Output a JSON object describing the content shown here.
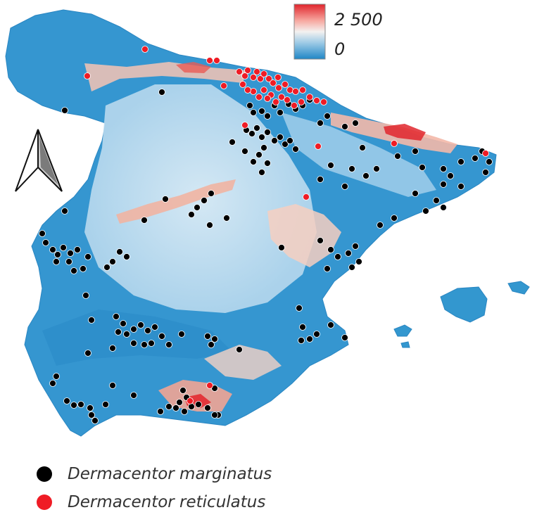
{
  "colors": {
    "sea": "#ffffff",
    "land_low": "#2f8fcb",
    "land_mid": "#c9e3f1",
    "land_high": "#f3c2b3",
    "peak": "#e4242b",
    "marginatus": "#000000",
    "reticulatus": "#ef1c25"
  },
  "elevation_scale": {
    "max_label": "2 500",
    "min_label": "0"
  },
  "north_arrow": {
    "icon": "north-arrow-icon"
  },
  "legend": {
    "items": [
      {
        "key": "marginatus",
        "label": "Dermacentor marginatus"
      },
      {
        "key": "reticulatus",
        "label": "Dermacentor reticulatus"
      }
    ]
  }
}
